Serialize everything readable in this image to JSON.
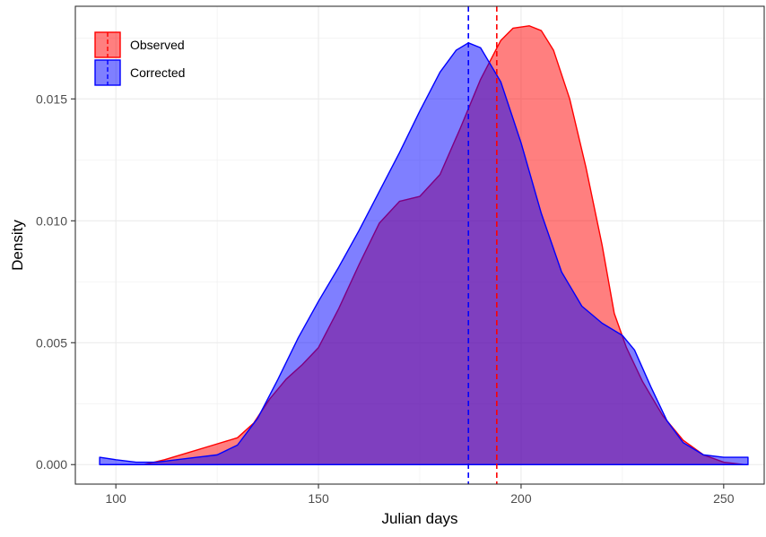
{
  "chart_data": {
    "type": "area",
    "title": "",
    "xlabel": "Julian days",
    "ylabel": "Density",
    "xlim": [
      90,
      260
    ],
    "ylim": [
      -0.0008,
      0.0188
    ],
    "grid": true,
    "legend_position": "top-left",
    "x_ticks": [
      {
        "value": 100,
        "label": "100"
      },
      {
        "value": 150,
        "label": "150"
      },
      {
        "value": 200,
        "label": "200"
      },
      {
        "value": 250,
        "label": "250"
      }
    ],
    "y_ticks": [
      {
        "value": 0,
        "label": "0.000"
      },
      {
        "value": 0.005,
        "label": "0.005"
      },
      {
        "value": 0.01,
        "label": "0.010"
      },
      {
        "value": 0.015,
        "label": "0.015"
      }
    ],
    "series": [
      {
        "name": "Observed",
        "color": "#ff0000",
        "fill": "#ff0000",
        "fill_opacity": 0.5,
        "mean": 194,
        "x": [
          107,
          112,
          118,
          124,
          130,
          134,
          138,
          142,
          146,
          150,
          155,
          160,
          165,
          170,
          175,
          180,
          185,
          190,
          195,
          198,
          202,
          205,
          208,
          212,
          216,
          220,
          223,
          226,
          230,
          235,
          240,
          245,
          250,
          255,
          256
        ],
        "y": [
          0.0,
          0.0002,
          0.0005,
          0.0008,
          0.0011,
          0.0017,
          0.0027,
          0.0035,
          0.0041,
          0.0048,
          0.0064,
          0.0082,
          0.0099,
          0.0108,
          0.011,
          0.0119,
          0.0138,
          0.0158,
          0.0174,
          0.0179,
          0.018,
          0.0178,
          0.017,
          0.015,
          0.0122,
          0.009,
          0.0062,
          0.0048,
          0.0034,
          0.002,
          0.001,
          0.0004,
          0.0001,
          0.0,
          0.0
        ]
      },
      {
        "name": "Corrected",
        "color": "#0000ff",
        "fill": "#0000ff",
        "fill_opacity": 0.5,
        "mean": 187,
        "x": [
          96,
          100,
          105,
          110,
          115,
          120,
          125,
          130,
          135,
          140,
          145,
          150,
          155,
          160,
          165,
          170,
          175,
          180,
          184,
          187,
          190,
          195,
          200,
          205,
          210,
          215,
          220,
          225,
          228,
          232,
          236,
          240,
          245,
          250,
          256
        ],
        "y": [
          0.0003,
          0.0002,
          0.0001,
          0.0001,
          0.0002,
          0.0003,
          0.0004,
          0.0008,
          0.0019,
          0.0035,
          0.0052,
          0.0067,
          0.0081,
          0.0096,
          0.0112,
          0.0128,
          0.0145,
          0.0161,
          0.017,
          0.0173,
          0.0171,
          0.0157,
          0.0132,
          0.0103,
          0.0079,
          0.0065,
          0.0058,
          0.0053,
          0.0047,
          0.0032,
          0.0018,
          0.0009,
          0.0004,
          0.0003,
          0.0003
        ]
      }
    ]
  }
}
